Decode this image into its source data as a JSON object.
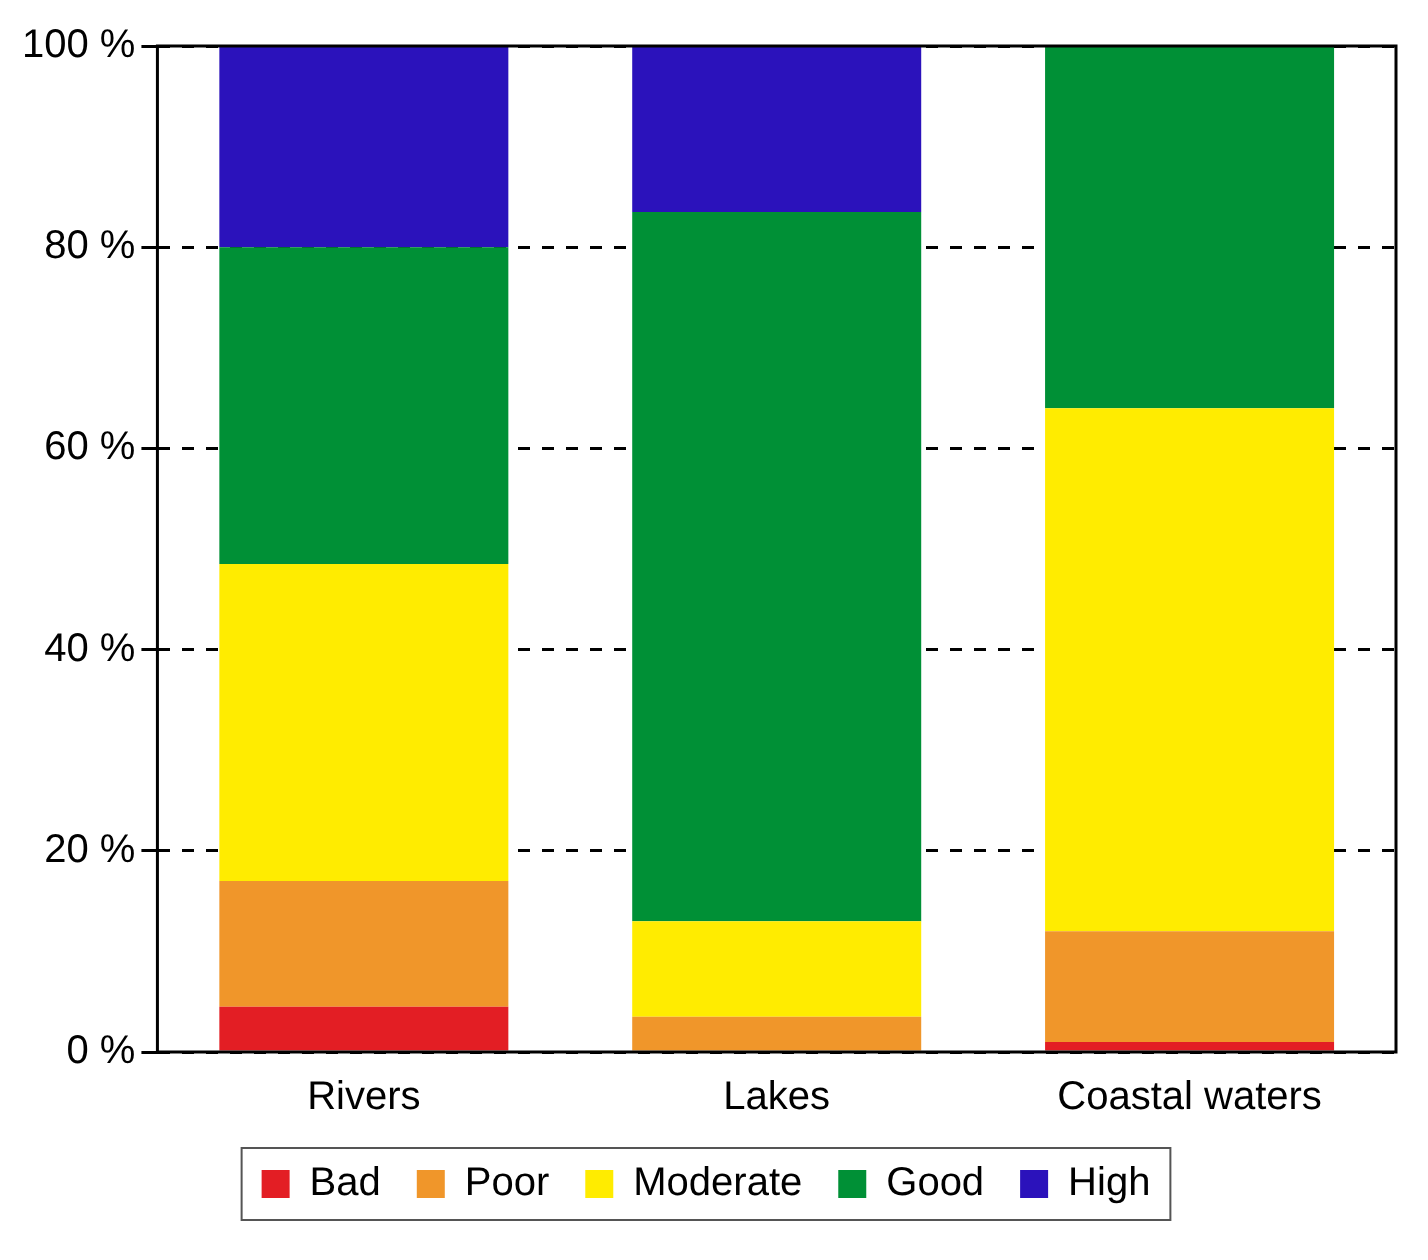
{
  "chart_data": {
    "type": "bar",
    "stacked": true,
    "categories": [
      "Rivers",
      "Lakes",
      "Coastal waters"
    ],
    "series": [
      {
        "name": "Bad",
        "color": "#e31e24",
        "values": [
          4.5,
          0,
          1
        ]
      },
      {
        "name": "Poor",
        "color": "#f0962a",
        "values": [
          12.5,
          3.5,
          11
        ]
      },
      {
        "name": "Moderate",
        "color": "#ffec00",
        "values": [
          31.5,
          9.5,
          52
        ]
      },
      {
        "name": "Good",
        "color": "#009036",
        "values": [
          31.5,
          70.5,
          36
        ]
      },
      {
        "name": "High",
        "color": "#2b12bb",
        "values": [
          20,
          16.5,
          0
        ]
      }
    ],
    "ylim": [
      0,
      100
    ],
    "yticks": [
      {
        "value": 0,
        "label": "0 %"
      },
      {
        "value": 20,
        "label": "20 %"
      },
      {
        "value": 40,
        "label": "40 %"
      },
      {
        "value": 60,
        "label": "60 %"
      },
      {
        "value": 80,
        "label": "80 %"
      },
      {
        "value": 100,
        "label": "100 %"
      }
    ],
    "grid": "y",
    "legend": "bottom"
  }
}
